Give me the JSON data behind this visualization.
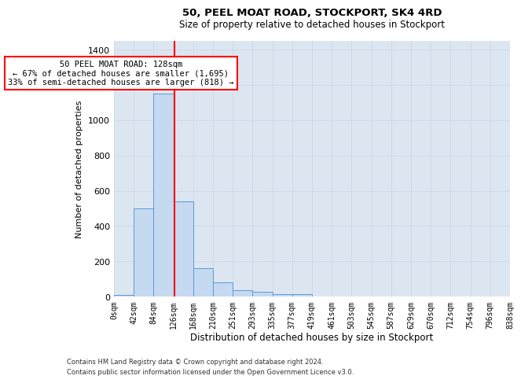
{
  "title": "50, PEEL MOAT ROAD, STOCKPORT, SK4 4RD",
  "subtitle": "Size of property relative to detached houses in Stockport",
  "xlabel": "Distribution of detached houses by size in Stockport",
  "ylabel": "Number of detached properties",
  "footer1": "Contains HM Land Registry data © Crown copyright and database right 2024.",
  "footer2": "Contains public sector information licensed under the Open Government Licence v3.0.",
  "bar_values": [
    10,
    500,
    1150,
    540,
    160,
    80,
    35,
    25,
    15,
    15,
    0,
    0,
    0,
    0,
    0,
    0,
    0,
    0,
    0,
    0
  ],
  "bar_color": "#c5d9f1",
  "bar_edge_color": "#5b9bd5",
  "grid_color": "#d0d8e8",
  "background_color": "#dce6f1",
  "tick_labels": [
    "0sqm",
    "42sqm",
    "84sqm",
    "126sqm",
    "168sqm",
    "210sqm",
    "251sqm",
    "293sqm",
    "335sqm",
    "377sqm",
    "419sqm",
    "461sqm",
    "503sqm",
    "545sqm",
    "587sqm",
    "629sqm",
    "670sqm",
    "712sqm",
    "754sqm",
    "796sqm",
    "838sqm"
  ],
  "ylim": [
    0,
    1450
  ],
  "yticks": [
    0,
    200,
    400,
    600,
    800,
    1000,
    1200,
    1400
  ],
  "red_line_x": 3.05,
  "annotation_text_line1": "50 PEEL MOAT ROAD: 128sqm",
  "annotation_text_line2": "← 67% of detached houses are smaller (1,695)",
  "annotation_text_line3": "33% of semi-detached houses are larger (818) →",
  "annotation_box_color": "red",
  "annotation_fill": "white"
}
